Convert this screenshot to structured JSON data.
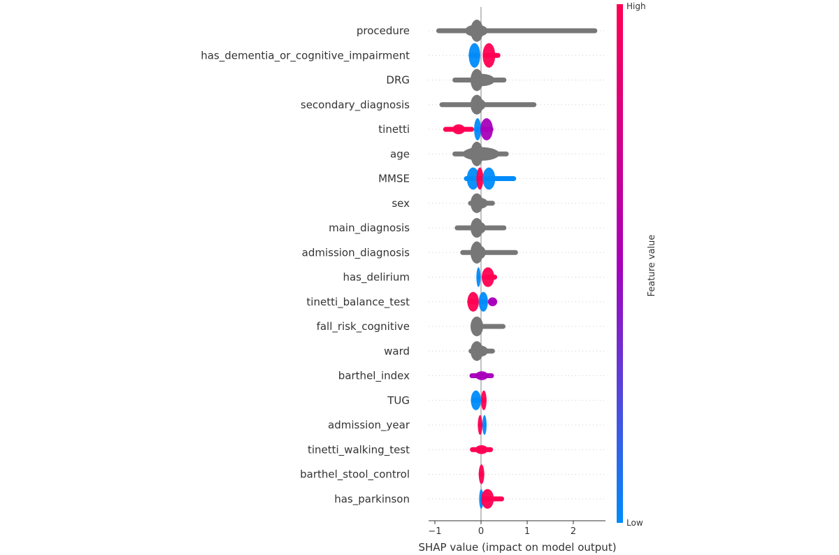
{
  "chart_data": {
    "type": "scatter",
    "subtype": "shap-beeswarm-summary",
    "xlabel": "SHAP value (impact on model output)",
    "xlim": [
      -1.1,
      2.7
    ],
    "xticks": [
      -1,
      0,
      1,
      2
    ],
    "xtick_labels": [
      "−1",
      "0",
      "1",
      "2"
    ],
    "grid": "dotted horizontal row guides",
    "colorbar": {
      "label": "Feature value",
      "high_label": "High",
      "low_label": "Low",
      "high_color": "#ff0052",
      "mid_color": "#a800ba",
      "low_color": "#008bfb",
      "placement": "right"
    },
    "missing_value_color": "#777777",
    "features": [
      {
        "name": "procedure",
        "colored": false,
        "min": -0.97,
        "max": 2.52,
        "core": [
          -0.35,
          0.15
        ],
        "peak": 0.45
      },
      {
        "name": "has_dementia_or_cognitive_impairment",
        "colored": true,
        "min": -0.27,
        "max": 0.42,
        "segments": [
          {
            "from": -0.27,
            "to": -0.02,
            "value": "low"
          },
          {
            "from": 0.05,
            "to": 0.42,
            "value": "high"
          }
        ],
        "peak": 0.5
      },
      {
        "name": "DRG",
        "colored": false,
        "min": -0.62,
        "max": 0.55,
        "core": [
          -0.25,
          0.3
        ],
        "peak": 0.45
      },
      {
        "name": "secondary_diagnosis",
        "colored": false,
        "min": -0.9,
        "max": 1.2,
        "core": [
          -0.15,
          0.1
        ],
        "peak": 0.4
      },
      {
        "name": "tinetti",
        "colored": true,
        "min": -0.82,
        "max": 0.27,
        "segments": [
          {
            "from": -0.82,
            "to": -0.15,
            "value": "high"
          },
          {
            "from": -0.15,
            "to": 0.0,
            "value": "low"
          },
          {
            "from": 0.0,
            "to": 0.27,
            "value": "mid"
          }
        ],
        "peak": 0.45
      },
      {
        "name": "age",
        "colored": false,
        "min": -0.62,
        "max": 0.6,
        "core": [
          -0.4,
          0.4
        ],
        "peak": 0.5
      },
      {
        "name": "MMSE",
        "colored": true,
        "min": -0.37,
        "max": 0.76,
        "segments": [
          {
            "from": -0.37,
            "to": -0.05,
            "value": "low"
          },
          {
            "from": -0.1,
            "to": 0.05,
            "value": "high"
          },
          {
            "from": 0.05,
            "to": 0.76,
            "value": "low"
          }
        ],
        "peak": 0.45
      },
      {
        "name": "sex",
        "colored": false,
        "min": -0.28,
        "max": 0.3,
        "core": [
          -0.2,
          0.15
        ],
        "peak": 0.4
      },
      {
        "name": "main_diagnosis",
        "colored": false,
        "min": -0.57,
        "max": 0.55,
        "core": [
          -0.1,
          0.1
        ],
        "peak": 0.4
      },
      {
        "name": "admission_diagnosis",
        "colored": false,
        "min": -0.45,
        "max": 0.8,
        "core": [
          -0.1,
          0.1
        ],
        "peak": 0.45
      },
      {
        "name": "has_delirium",
        "colored": true,
        "min": -0.1,
        "max": 0.35,
        "segments": [
          {
            "from": -0.1,
            "to": -0.01,
            "value": "low"
          },
          {
            "from": 0.03,
            "to": 0.35,
            "value": "high"
          }
        ],
        "peak": 0.4
      },
      {
        "name": "tinetti_balance_test",
        "colored": true,
        "min": -0.3,
        "max": 0.35,
        "segments": [
          {
            "from": -0.3,
            "to": -0.05,
            "value": "high"
          },
          {
            "from": -0.05,
            "to": 0.15,
            "value": "low"
          },
          {
            "from": 0.15,
            "to": 0.35,
            "value": "mid"
          }
        ],
        "peak": 0.4
      },
      {
        "name": "fall_risk_cognitive",
        "colored": false,
        "min": -0.1,
        "max": 0.53,
        "core": [
          -0.05,
          0.02
        ],
        "peak": 0.4
      },
      {
        "name": "ward",
        "colored": false,
        "min": -0.27,
        "max": 0.3,
        "core": [
          -0.15,
          0.15
        ],
        "peak": 0.4
      },
      {
        "name": "barthel_index",
        "colored": true,
        "min": -0.25,
        "max": 0.28,
        "segments": [
          {
            "from": -0.25,
            "to": 0.28,
            "value": "mid"
          }
        ],
        "peak": 0.4
      },
      {
        "name": "TUG",
        "colored": true,
        "min": -0.22,
        "max": 0.12,
        "segments": [
          {
            "from": -0.22,
            "to": 0.0,
            "value": "low"
          },
          {
            "from": 0.0,
            "to": 0.12,
            "value": "high"
          }
        ],
        "peak": 0.4
      },
      {
        "name": "admission_year",
        "colored": true,
        "min": -0.07,
        "max": 0.12,
        "segments": [
          {
            "from": -0.07,
            "to": 0.03,
            "value": "high"
          },
          {
            "from": 0.03,
            "to": 0.12,
            "value": "low"
          }
        ],
        "peak": 0.4
      },
      {
        "name": "tinetti_walking_test",
        "colored": true,
        "min": -0.24,
        "max": 0.26,
        "segments": [
          {
            "from": -0.24,
            "to": 0.26,
            "value": "high"
          }
        ],
        "peak": 0.4
      },
      {
        "name": "barthel_stool_control",
        "colored": true,
        "min": -0.05,
        "max": 0.07,
        "segments": [
          {
            "from": -0.05,
            "to": 0.07,
            "value": "high"
          }
        ],
        "peak": 0.4
      },
      {
        "name": "has_parkinson",
        "colored": true,
        "min": -0.01,
        "max": 0.5,
        "segments": [
          {
            "from": -0.01,
            "to": 0.02,
            "value": "low"
          },
          {
            "from": 0.02,
            "to": 0.5,
            "value": "high"
          }
        ],
        "peak": 0.4
      }
    ]
  }
}
